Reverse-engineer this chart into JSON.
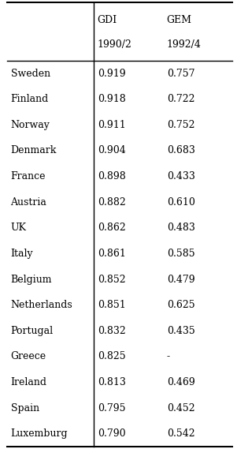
{
  "col_headers_line1": [
    "",
    "GDI",
    "GEM"
  ],
  "col_headers_line2": [
    "",
    "1990/2",
    "1992/4"
  ],
  "rows": [
    [
      "Sweden",
      "0.919",
      "0.757"
    ],
    [
      "Finland",
      "0.918",
      "0.722"
    ],
    [
      "Norway",
      "0.911",
      "0.752"
    ],
    [
      "Denmark",
      "0.904",
      "0.683"
    ],
    [
      "France",
      "0.898",
      "0.433"
    ],
    [
      "Austria",
      "0.882",
      "0.610"
    ],
    [
      "UK",
      "0.862",
      "0.483"
    ],
    [
      "Italy",
      "0.861",
      "0.585"
    ],
    [
      "Belgium",
      "0.852",
      "0.479"
    ],
    [
      "Netherlands",
      "0.851",
      "0.625"
    ],
    [
      "Portugal",
      "0.832",
      "0.435"
    ],
    [
      "Greece",
      "0.825",
      "-"
    ],
    [
      "Ireland",
      "0.813",
      "0.469"
    ],
    [
      "Spain",
      "0.795",
      "0.452"
    ],
    [
      "Luxemburg",
      "0.790",
      "0.542"
    ]
  ],
  "background_color": "#ffffff",
  "text_color": "#000000",
  "line_color": "#000000",
  "font_size": 9.0,
  "header_font_size": 9.0,
  "fig_width": 3.01,
  "fig_height": 5.69,
  "dpi": 100
}
